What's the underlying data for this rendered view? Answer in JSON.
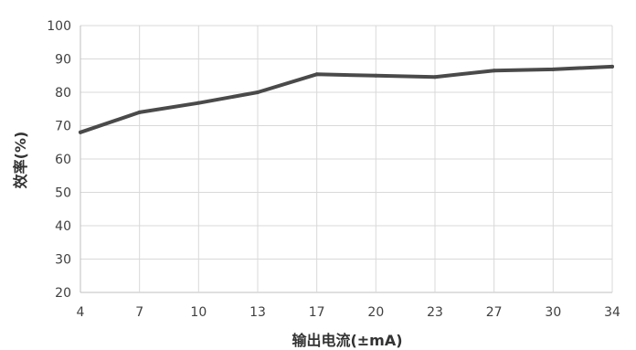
{
  "chart_data": {
    "type": "line",
    "title": "",
    "xlabel": "输出电流(±mA)",
    "ylabel": "效率(%)",
    "categories": [
      "4",
      "7",
      "10",
      "13",
      "17",
      "20",
      "23",
      "27",
      "30",
      "34"
    ],
    "series": [
      {
        "values": [
          68,
          74,
          76.8,
          80,
          85.4,
          85,
          84.6,
          86.5,
          86.9,
          87.7
        ]
      }
    ],
    "ylim": [
      20,
      100
    ],
    "yticks": [
      "20",
      "30",
      "40",
      "50",
      "60",
      "70",
      "80",
      "90",
      "100"
    ],
    "grid": true,
    "legend": "none",
    "colors": {
      "line": "#4a4a4a",
      "grid": "#d9d9d9",
      "axis": "#bfbfbf"
    }
  }
}
